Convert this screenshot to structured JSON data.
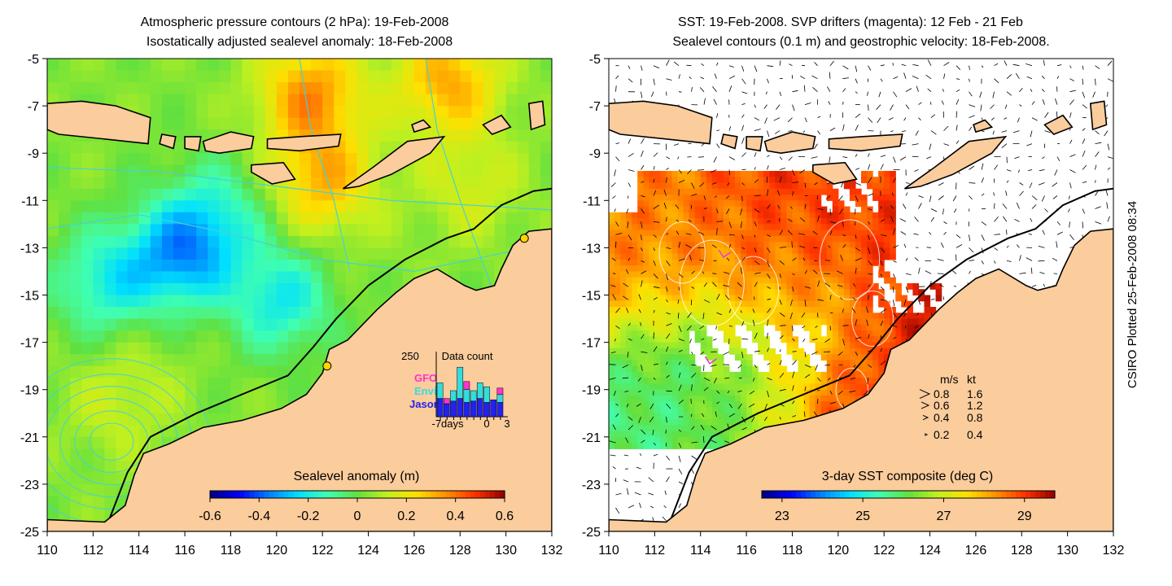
{
  "credit": "CSIRO Plotted 25-Feb-2008 08:34",
  "colors": {
    "land": "#fbcc9c",
    "coast": "#000000",
    "pressure_contour": "#46d2d2",
    "drifter": "#e040e0",
    "gfo": "#ff33cc",
    "envi": "#33dddd",
    "jason": "#2222ee"
  },
  "chart_data": [
    {
      "type": "heatmap",
      "title": [
        "Atmospheric pressure contours (2 hPa): 19-Feb-2008",
        "Isostatically adjusted sealevel anomaly: 18-Feb-2008"
      ],
      "xlim": [
        110,
        132
      ],
      "ylim": [
        -25,
        -5
      ],
      "xticks": [
        "110",
        "112",
        "114",
        "116",
        "118",
        "120",
        "122",
        "124",
        "126",
        "128",
        "130",
        "132"
      ],
      "yticks": [
        "-5",
        "-7",
        "-9",
        "-11",
        "-13",
        "-15",
        "-17",
        "-19",
        "-21",
        "-23",
        "-25"
      ],
      "colorbar": {
        "label": "Sealevel anomaly (m)",
        "range": [
          -0.6,
          0.6
        ],
        "ticks": [
          "-0.6",
          "-0.4",
          "-0.2",
          "0",
          "0.2",
          "0.4",
          "0.6"
        ],
        "colormap": [
          "#00007f",
          "#0000ff",
          "#0080ff",
          "#00e0ff",
          "#40ffb0",
          "#60e040",
          "#c0f020",
          "#ffe000",
          "#ff9000",
          "#ff3000",
          "#900000"
        ]
      },
      "field_features": [
        {
          "lon": 115.8,
          "lat": -13.3,
          "value": -0.3
        },
        {
          "lon": 112.5,
          "lat": -14.5,
          "value": -0.18
        },
        {
          "lon": 120.2,
          "lat": -15.2,
          "value": -0.2
        },
        {
          "lon": 117.5,
          "lat": -11.5,
          "value": -0.12
        },
        {
          "lon": 121.5,
          "lat": -6.5,
          "value": 0.35
        },
        {
          "lon": 127.5,
          "lat": -6.0,
          "value": 0.32
        },
        {
          "lon": 122.0,
          "lat": -10.2,
          "value": 0.3
        },
        {
          "lon": 113.0,
          "lat": -19.8,
          "value": 0.12
        },
        {
          "lon": 114.2,
          "lat": -17.8,
          "value": 0.08
        },
        {
          "lon": 128.5,
          "lat": -10.5,
          "value": 0.15
        },
        {
          "lon": 124.0,
          "lat": -14.0,
          "value": 0.05
        }
      ],
      "inset": {
        "title": "Data count",
        "ymax_label": "250",
        "xlabels": [
          "-7days",
          "0",
          "3"
        ],
        "legend": [
          "GFO",
          "Envi",
          "Jason"
        ],
        "days": [
          -7,
          -6,
          -5,
          -4,
          -3,
          -2,
          -1,
          0,
          1,
          2
        ],
        "jason": [
          70,
          50,
          60,
          70,
          55,
          60,
          70,
          55,
          65,
          55
        ],
        "envi": [
          60,
          0,
          40,
          120,
          50,
          40,
          60,
          60,
          0,
          30
        ],
        "gfo": [
          0,
          20,
          0,
          0,
          30,
          0,
          0,
          0,
          0,
          25
        ]
      }
    },
    {
      "type": "heatmap",
      "title": [
        "SST: 19-Feb-2008. SVP drifters (magenta): 12 Feb - 21 Feb",
        "Sealevel contours (0.1 m) and geostrophic velocity: 18-Feb-2008."
      ],
      "xlim": [
        110,
        132
      ],
      "ylim": [
        -25,
        -5
      ],
      "xticks": [
        "110",
        "112",
        "114",
        "116",
        "118",
        "120",
        "122",
        "124",
        "126",
        "128",
        "130",
        "132"
      ],
      "yticks": [
        "-5",
        "-7",
        "-9",
        "-11",
        "-13",
        "-15",
        "-17",
        "-19",
        "-21",
        "-23",
        "-25"
      ],
      "colorbar": {
        "label": "3-day SST composite (deg C)",
        "range": [
          22.5,
          29.75
        ],
        "ticks": [
          "23",
          "25",
          "27",
          "29"
        ],
        "tick_values": [
          23,
          25,
          27,
          29
        ],
        "colormap": [
          "#00007f",
          "#0000ff",
          "#0080ff",
          "#00e0ff",
          "#40ffb0",
          "#60e040",
          "#c0f020",
          "#ffe000",
          "#ff9000",
          "#ff3000",
          "#900000"
        ]
      },
      "field_features": [
        {
          "lon": 117.5,
          "lat": -14.0,
          "value": 28.8
        },
        {
          "lon": 121.0,
          "lat": -12.0,
          "value": 28.9
        },
        {
          "lon": 112.0,
          "lat": -13.8,
          "value": 28.4
        },
        {
          "lon": 123.5,
          "lat": -17.5,
          "value": 29.4
        },
        {
          "lon": 121.0,
          "lat": -20.0,
          "value": 29.3
        },
        {
          "lon": 113.0,
          "lat": -18.5,
          "value": 25.6
        },
        {
          "lon": 115.5,
          "lat": -19.0,
          "value": 26.4
        },
        {
          "lon": 118.5,
          "lat": -16.8,
          "value": 27.2
        },
        {
          "lon": 121.0,
          "lat": -9.5,
          "value": 29.0
        }
      ],
      "velocity_legend": {
        "headers": [
          "m/s",
          "kt"
        ],
        "rows": [
          [
            "0.8",
            "1.6"
          ],
          [
            "0.6",
            "1.2"
          ],
          [
            "0.4",
            "0.8"
          ],
          [
            "0.2",
            "0.4"
          ]
        ]
      }
    }
  ]
}
